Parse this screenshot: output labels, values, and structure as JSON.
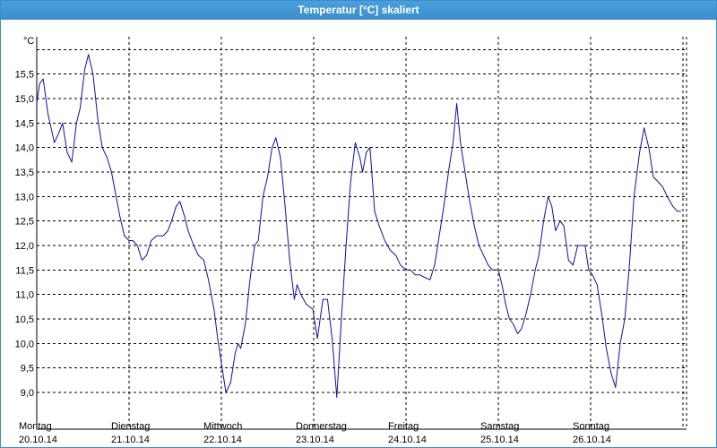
{
  "window": {
    "title": "Temperatur [°C] skaliert"
  },
  "colors": {
    "titlebar": "#3b8ec9",
    "series": "#1010a0",
    "grid": "#000000"
  },
  "chart_data": {
    "type": "line",
    "title": "Temperatur [°C] skaliert",
    "ylabel": "°C",
    "ylim": [
      8.6,
      16.4
    ],
    "y_ticks": [
      "15,5",
      "15,0",
      "14,5",
      "14,0",
      "13,5",
      "13,0",
      "12,5",
      "12,0",
      "11,5",
      "11,0",
      "10,5",
      "10,0",
      "9,5",
      "9,0"
    ],
    "y_tick_values": [
      15.5,
      15.0,
      14.5,
      14.0,
      13.5,
      13.0,
      12.5,
      12.0,
      11.5,
      11.0,
      10.5,
      10.0,
      9.5,
      9.0
    ],
    "x_day_labels": [
      {
        "day": "Montag",
        "date": "20.10.14"
      },
      {
        "day": "Dienstag",
        "date": "21.10.14"
      },
      {
        "day": "Mittwoch",
        "date": "22.10.14"
      },
      {
        "day": "Donnerstag",
        "date": "23.10.14"
      },
      {
        "day": "Freitag",
        "date": "24.10.14"
      },
      {
        "day": "Samstag",
        "date": "25.10.14"
      },
      {
        "day": "Sonntag",
        "date": "26.10.14"
      }
    ],
    "grid": true,
    "series": [
      {
        "values": [
          [
            0.0,
            14.9
          ],
          [
            0.03,
            15.3
          ],
          [
            0.07,
            15.4
          ],
          [
            0.12,
            14.7
          ],
          [
            0.19,
            14.1
          ],
          [
            0.24,
            14.3
          ],
          [
            0.28,
            14.5
          ],
          [
            0.33,
            13.9
          ],
          [
            0.38,
            13.7
          ],
          [
            0.43,
            14.5
          ],
          [
            0.47,
            14.8
          ],
          [
            0.52,
            15.6
          ],
          [
            0.56,
            15.9
          ],
          [
            0.61,
            15.5
          ],
          [
            0.66,
            14.6
          ],
          [
            0.71,
            14.0
          ],
          [
            0.76,
            13.8
          ],
          [
            0.81,
            13.5
          ],
          [
            0.85,
            13.1
          ],
          [
            0.9,
            12.6
          ],
          [
            0.95,
            12.2
          ],
          [
            1.0,
            12.1
          ],
          [
            1.04,
            12.1
          ],
          [
            1.09,
            12.0
          ],
          [
            1.14,
            11.7
          ],
          [
            1.19,
            11.8
          ],
          [
            1.24,
            12.1
          ],
          [
            1.3,
            12.2
          ],
          [
            1.37,
            12.2
          ],
          [
            1.42,
            12.3
          ],
          [
            1.46,
            12.5
          ],
          [
            1.51,
            12.8
          ],
          [
            1.55,
            12.9
          ],
          [
            1.6,
            12.6
          ],
          [
            1.64,
            12.3
          ],
          [
            1.7,
            12.0
          ],
          [
            1.75,
            11.8
          ],
          [
            1.81,
            11.7
          ],
          [
            1.86,
            11.3
          ],
          [
            1.92,
            10.7
          ],
          [
            1.96,
            10.1
          ],
          [
            2.0,
            9.6
          ],
          [
            2.05,
            9.0
          ],
          [
            2.1,
            9.2
          ],
          [
            2.15,
            9.8
          ],
          [
            2.18,
            10.0
          ],
          [
            2.21,
            9.9
          ],
          [
            2.26,
            10.4
          ],
          [
            2.31,
            11.3
          ],
          [
            2.36,
            12.0
          ],
          [
            2.4,
            12.1
          ],
          [
            2.45,
            13.0
          ],
          [
            2.5,
            13.4
          ],
          [
            2.55,
            14.0
          ],
          [
            2.59,
            14.2
          ],
          [
            2.64,
            13.8
          ],
          [
            2.69,
            12.8
          ],
          [
            2.74,
            11.7
          ],
          [
            2.79,
            10.9
          ],
          [
            2.82,
            11.2
          ],
          [
            2.86,
            11.0
          ],
          [
            2.92,
            10.8
          ],
          [
            2.99,
            10.7
          ],
          [
            3.04,
            10.1
          ],
          [
            3.1,
            10.9
          ],
          [
            3.15,
            10.9
          ],
          [
            3.2,
            10.1
          ],
          [
            3.25,
            8.9
          ],
          [
            3.3,
            10.5
          ],
          [
            3.35,
            12.0
          ],
          [
            3.4,
            13.3
          ],
          [
            3.45,
            14.1
          ],
          [
            3.5,
            13.8
          ],
          [
            3.53,
            13.5
          ],
          [
            3.57,
            13.9
          ],
          [
            3.61,
            14.0
          ],
          [
            3.66,
            12.7
          ],
          [
            3.71,
            12.4
          ],
          [
            3.77,
            12.1
          ],
          [
            3.83,
            11.9
          ],
          [
            3.89,
            11.8
          ],
          [
            3.94,
            11.6
          ],
          [
            4.0,
            11.5
          ],
          [
            4.05,
            11.5
          ],
          [
            4.1,
            11.4
          ],
          [
            4.15,
            11.4
          ],
          [
            4.2,
            11.35
          ],
          [
            4.26,
            11.3
          ],
          [
            4.31,
            11.6
          ],
          [
            4.36,
            12.2
          ],
          [
            4.41,
            12.8
          ],
          [
            4.46,
            13.5
          ],
          [
            4.51,
            14.1
          ],
          [
            4.55,
            14.9
          ],
          [
            4.59,
            14.1
          ],
          [
            4.64,
            13.5
          ],
          [
            4.69,
            12.9
          ],
          [
            4.74,
            12.4
          ],
          [
            4.79,
            12.0
          ],
          [
            4.84,
            11.8
          ],
          [
            4.89,
            11.6
          ],
          [
            4.94,
            11.5
          ],
          [
            5.0,
            11.5
          ],
          [
            5.04,
            11.2
          ],
          [
            5.08,
            10.8
          ],
          [
            5.12,
            10.5
          ],
          [
            5.16,
            10.4
          ],
          [
            5.21,
            10.2
          ],
          [
            5.25,
            10.3
          ],
          [
            5.3,
            10.6
          ],
          [
            5.35,
            11.0
          ],
          [
            5.4,
            11.5
          ],
          [
            5.44,
            11.8
          ],
          [
            5.49,
            12.5
          ],
          [
            5.54,
            13.0
          ],
          [
            5.58,
            12.8
          ],
          [
            5.62,
            12.3
          ],
          [
            5.67,
            12.5
          ],
          [
            5.71,
            12.4
          ],
          [
            5.76,
            11.7
          ],
          [
            5.81,
            11.6
          ],
          [
            5.86,
            12.0
          ],
          [
            5.9,
            12.0
          ],
          [
            5.94,
            12.0
          ],
          [
            5.98,
            11.5
          ],
          [
            6.02,
            11.4
          ],
          [
            6.07,
            11.2
          ],
          [
            6.12,
            10.6
          ],
          [
            6.17,
            9.9
          ],
          [
            6.22,
            9.4
          ],
          [
            6.27,
            9.1
          ],
          [
            6.32,
            10.0
          ],
          [
            6.37,
            10.5
          ],
          [
            6.42,
            11.6
          ],
          [
            6.47,
            13.0
          ],
          [
            6.53,
            13.9
          ],
          [
            6.58,
            14.4
          ],
          [
            6.63,
            14.0
          ],
          [
            6.68,
            13.4
          ],
          [
            6.73,
            13.3
          ],
          [
            6.78,
            13.2
          ],
          [
            6.83,
            13.0
          ],
          [
            6.89,
            12.8
          ],
          [
            6.94,
            12.7
          ],
          [
            6.98,
            12.7
          ]
        ]
      }
    ]
  }
}
